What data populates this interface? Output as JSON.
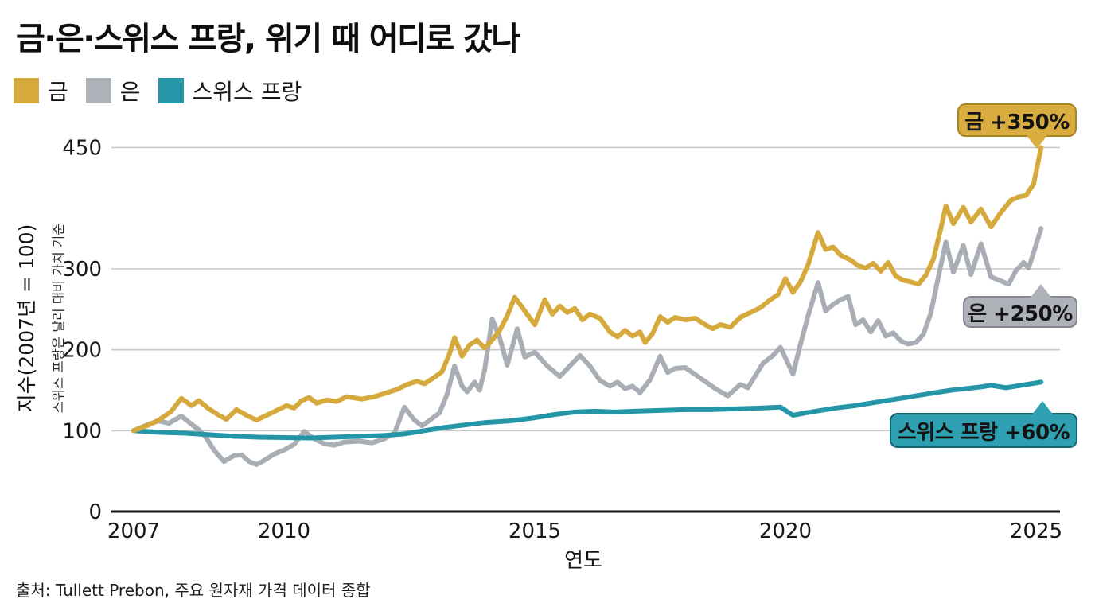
{
  "title": "금·은·스위스 프랑, 위기 때 어디로 갔나",
  "legend": [
    {
      "label": "금",
      "color": "#d5a93c"
    },
    {
      "label": "은",
      "color": "#adb2b8"
    },
    {
      "label": "스위스 프랑",
      "color": "#2596a8"
    }
  ],
  "y_axis": {
    "label_primary": "지수(2007년 = 100)",
    "label_secondary": "스위스 프랑은 달러 대비 가치 기준",
    "ticks": [
      0,
      100,
      200,
      300,
      450
    ]
  },
  "x_axis": {
    "label": "연도",
    "ticks": [
      2007,
      2010,
      2015,
      2020,
      2025
    ]
  },
  "callouts": [
    {
      "text": "금 +350%",
      "bg": "#d9ad3f",
      "border": "#a8861f",
      "points": "down"
    },
    {
      "text": "은 +250%",
      "bg": "#aeb2b8",
      "border": "#82878e",
      "points": "up"
    },
    {
      "text": "스위스 프랑 +60%",
      "bg": "#2fa0b2",
      "border": "#16646f",
      "points": "up"
    }
  ],
  "source": "출처: Tullett Prebon, 주요 원자재 가격 데이터 종합",
  "chart_data": {
    "type": "line",
    "title": "금·은·스위스 프랑, 위기 때 어디로 갔나",
    "xlabel": "연도",
    "ylabel": "지수(2007년 = 100)",
    "ylabel_note": "스위스 프랑은 달러 대비 가치 기준",
    "x_range": [
      2007,
      2025.2
    ],
    "y_ticks": [
      0,
      100,
      200,
      300,
      450
    ],
    "x_ticks": [
      2007,
      2010,
      2015,
      2020,
      2025
    ],
    "grid": true,
    "legend_position": "top-left",
    "series": [
      {
        "name": "은",
        "color": "#a9aeb5",
        "final_change_label": "은 +250%",
        "points": [
          [
            2007.0,
            100
          ],
          [
            2007.3,
            108
          ],
          [
            2007.5,
            112
          ],
          [
            2007.7,
            109
          ],
          [
            2007.95,
            118
          ],
          [
            2008.15,
            108
          ],
          [
            2008.3,
            101
          ],
          [
            2008.45,
            91
          ],
          [
            2008.6,
            76
          ],
          [
            2008.8,
            62
          ],
          [
            2009.0,
            69
          ],
          [
            2009.15,
            70
          ],
          [
            2009.3,
            62
          ],
          [
            2009.45,
            58
          ],
          [
            2009.6,
            63
          ],
          [
            2009.8,
            71
          ],
          [
            2010.0,
            76
          ],
          [
            2010.2,
            83
          ],
          [
            2010.4,
            99
          ],
          [
            2010.6,
            90
          ],
          [
            2010.8,
            84
          ],
          [
            2011.0,
            82
          ],
          [
            2011.2,
            86
          ],
          [
            2011.5,
            87
          ],
          [
            2011.75,
            85
          ],
          [
            2012.0,
            90
          ],
          [
            2012.2,
            97
          ],
          [
            2012.4,
            129
          ],
          [
            2012.6,
            113
          ],
          [
            2012.75,
            106
          ],
          [
            2012.95,
            115
          ],
          [
            2013.1,
            122
          ],
          [
            2013.25,
            145
          ],
          [
            2013.4,
            180
          ],
          [
            2013.55,
            155
          ],
          [
            2013.65,
            148
          ],
          [
            2013.8,
            160
          ],
          [
            2013.9,
            150
          ],
          [
            2014.0,
            175
          ],
          [
            2014.15,
            238
          ],
          [
            2014.3,
            215
          ],
          [
            2014.45,
            181
          ],
          [
            2014.65,
            226
          ],
          [
            2014.8,
            191
          ],
          [
            2015.0,
            197
          ],
          [
            2015.25,
            180
          ],
          [
            2015.5,
            167
          ],
          [
            2015.7,
            180
          ],
          [
            2015.9,
            193
          ],
          [
            2016.1,
            180
          ],
          [
            2016.3,
            162
          ],
          [
            2016.5,
            155
          ],
          [
            2016.65,
            160
          ],
          [
            2016.8,
            152
          ],
          [
            2016.95,
            155
          ],
          [
            2017.1,
            147
          ],
          [
            2017.3,
            163
          ],
          [
            2017.5,
            192
          ],
          [
            2017.65,
            172
          ],
          [
            2017.8,
            177
          ],
          [
            2018.0,
            178
          ],
          [
            2018.35,
            163
          ],
          [
            2018.6,
            152
          ],
          [
            2018.85,
            143
          ],
          [
            2019.1,
            157
          ],
          [
            2019.25,
            153
          ],
          [
            2019.55,
            183
          ],
          [
            2019.75,
            193
          ],
          [
            2019.9,
            203
          ],
          [
            2020.15,
            170
          ],
          [
            2020.3,
            207
          ],
          [
            2020.45,
            242
          ],
          [
            2020.65,
            283
          ],
          [
            2020.8,
            248
          ],
          [
            2020.95,
            256
          ],
          [
            2021.1,
            262
          ],
          [
            2021.25,
            266
          ],
          [
            2021.4,
            231
          ],
          [
            2021.55,
            237
          ],
          [
            2021.7,
            222
          ],
          [
            2021.85,
            236
          ],
          [
            2022.0,
            217
          ],
          [
            2022.15,
            221
          ],
          [
            2022.3,
            211
          ],
          [
            2022.45,
            207
          ],
          [
            2022.6,
            209
          ],
          [
            2022.75,
            219
          ],
          [
            2022.9,
            245
          ],
          [
            2023.05,
            290
          ],
          [
            2023.2,
            333
          ],
          [
            2023.35,
            296
          ],
          [
            2023.55,
            329
          ],
          [
            2023.7,
            293
          ],
          [
            2023.9,
            331
          ],
          [
            2024.1,
            290
          ],
          [
            2024.3,
            285
          ],
          [
            2024.45,
            281
          ],
          [
            2024.6,
            298
          ],
          [
            2024.75,
            308
          ],
          [
            2024.85,
            301
          ],
          [
            2025.0,
            330
          ],
          [
            2025.1,
            350
          ]
        ]
      },
      {
        "name": "스위스 프랑",
        "color": "#2596a8",
        "final_change_label": "스위스 프랑 +60%",
        "points": [
          [
            2007.0,
            100
          ],
          [
            2007.5,
            98
          ],
          [
            2008.0,
            97
          ],
          [
            2008.5,
            95
          ],
          [
            2009.0,
            93
          ],
          [
            2009.5,
            92
          ],
          [
            2010.0,
            91.5
          ],
          [
            2010.5,
            91
          ],
          [
            2011.0,
            92
          ],
          [
            2011.5,
            93
          ],
          [
            2012.0,
            94
          ],
          [
            2012.4,
            96
          ],
          [
            2012.8,
            100
          ],
          [
            2013.2,
            104
          ],
          [
            2013.6,
            107
          ],
          [
            2014.0,
            110
          ],
          [
            2014.5,
            112
          ],
          [
            2015.0,
            116
          ],
          [
            2015.4,
            120
          ],
          [
            2015.8,
            123
          ],
          [
            2016.2,
            124
          ],
          [
            2016.6,
            123
          ],
          [
            2017.0,
            124
          ],
          [
            2017.5,
            125
          ],
          [
            2018.0,
            126
          ],
          [
            2018.5,
            126
          ],
          [
            2019.0,
            127
          ],
          [
            2019.5,
            128
          ],
          [
            2019.9,
            129
          ],
          [
            2020.15,
            119
          ],
          [
            2020.4,
            122
          ],
          [
            2020.7,
            125
          ],
          [
            2021.0,
            128
          ],
          [
            2021.4,
            131
          ],
          [
            2021.8,
            135
          ],
          [
            2022.2,
            139
          ],
          [
            2022.6,
            143
          ],
          [
            2023.0,
            147
          ],
          [
            2023.3,
            150
          ],
          [
            2023.6,
            152
          ],
          [
            2023.9,
            154
          ],
          [
            2024.1,
            156
          ],
          [
            2024.4,
            153
          ],
          [
            2024.7,
            156
          ],
          [
            2024.9,
            158
          ],
          [
            2025.1,
            160
          ]
        ]
      },
      {
        "name": "금",
        "color": "#d5a93c",
        "final_change_label": "금 +350%",
        "points": [
          [
            2007.0,
            100
          ],
          [
            2007.3,
            107
          ],
          [
            2007.5,
            113
          ],
          [
            2007.75,
            124
          ],
          [
            2007.95,
            140
          ],
          [
            2008.15,
            131
          ],
          [
            2008.3,
            137
          ],
          [
            2008.5,
            127
          ],
          [
            2008.7,
            119
          ],
          [
            2008.85,
            114
          ],
          [
            2009.05,
            126
          ],
          [
            2009.25,
            119
          ],
          [
            2009.45,
            113
          ],
          [
            2009.65,
            119
          ],
          [
            2009.85,
            125
          ],
          [
            2010.05,
            131
          ],
          [
            2010.2,
            128
          ],
          [
            2010.35,
            137
          ],
          [
            2010.5,
            141
          ],
          [
            2010.65,
            134
          ],
          [
            2010.85,
            138
          ],
          [
            2011.05,
            136
          ],
          [
            2011.25,
            142
          ],
          [
            2011.55,
            139
          ],
          [
            2011.8,
            142
          ],
          [
            2012.0,
            146
          ],
          [
            2012.25,
            151
          ],
          [
            2012.45,
            157
          ],
          [
            2012.65,
            161
          ],
          [
            2012.8,
            158
          ],
          [
            2013.0,
            166
          ],
          [
            2013.15,
            173
          ],
          [
            2013.3,
            195
          ],
          [
            2013.4,
            215
          ],
          [
            2013.55,
            192
          ],
          [
            2013.7,
            206
          ],
          [
            2013.85,
            212
          ],
          [
            2014.0,
            202
          ],
          [
            2014.15,
            212
          ],
          [
            2014.3,
            224
          ],
          [
            2014.45,
            242
          ],
          [
            2014.6,
            265
          ],
          [
            2014.8,
            248
          ],
          [
            2015.0,
            231
          ],
          [
            2015.2,
            262
          ],
          [
            2015.35,
            244
          ],
          [
            2015.5,
            254
          ],
          [
            2015.65,
            246
          ],
          [
            2015.8,
            251
          ],
          [
            2015.95,
            237
          ],
          [
            2016.1,
            244
          ],
          [
            2016.3,
            239
          ],
          [
            2016.5,
            222
          ],
          [
            2016.65,
            216
          ],
          [
            2016.8,
            224
          ],
          [
            2016.95,
            217
          ],
          [
            2017.1,
            222
          ],
          [
            2017.2,
            209
          ],
          [
            2017.35,
            220
          ],
          [
            2017.5,
            241
          ],
          [
            2017.65,
            234
          ],
          [
            2017.8,
            240
          ],
          [
            2018.0,
            237
          ],
          [
            2018.2,
            239
          ],
          [
            2018.4,
            231
          ],
          [
            2018.55,
            226
          ],
          [
            2018.7,
            231
          ],
          [
            2018.9,
            228
          ],
          [
            2019.1,
            240
          ],
          [
            2019.3,
            246
          ],
          [
            2019.5,
            252
          ],
          [
            2019.7,
            262
          ],
          [
            2019.85,
            268
          ],
          [
            2020.0,
            288
          ],
          [
            2020.15,
            271
          ],
          [
            2020.3,
            284
          ],
          [
            2020.45,
            305
          ],
          [
            2020.65,
            345
          ],
          [
            2020.8,
            324
          ],
          [
            2020.95,
            327
          ],
          [
            2021.1,
            317
          ],
          [
            2021.3,
            311
          ],
          [
            2021.45,
            304
          ],
          [
            2021.6,
            301
          ],
          [
            2021.75,
            307
          ],
          [
            2021.9,
            297
          ],
          [
            2022.05,
            308
          ],
          [
            2022.2,
            291
          ],
          [
            2022.35,
            286
          ],
          [
            2022.5,
            284
          ],
          [
            2022.65,
            281
          ],
          [
            2022.8,
            292
          ],
          [
            2022.95,
            312
          ],
          [
            2023.1,
            350
          ],
          [
            2023.2,
            378
          ],
          [
            2023.35,
            356
          ],
          [
            2023.55,
            376
          ],
          [
            2023.7,
            358
          ],
          [
            2023.9,
            374
          ],
          [
            2024.1,
            352
          ],
          [
            2024.3,
            370
          ],
          [
            2024.5,
            385
          ],
          [
            2024.65,
            389
          ],
          [
            2024.8,
            391
          ],
          [
            2024.95,
            405
          ],
          [
            2025.1,
            450
          ]
        ]
      }
    ]
  }
}
